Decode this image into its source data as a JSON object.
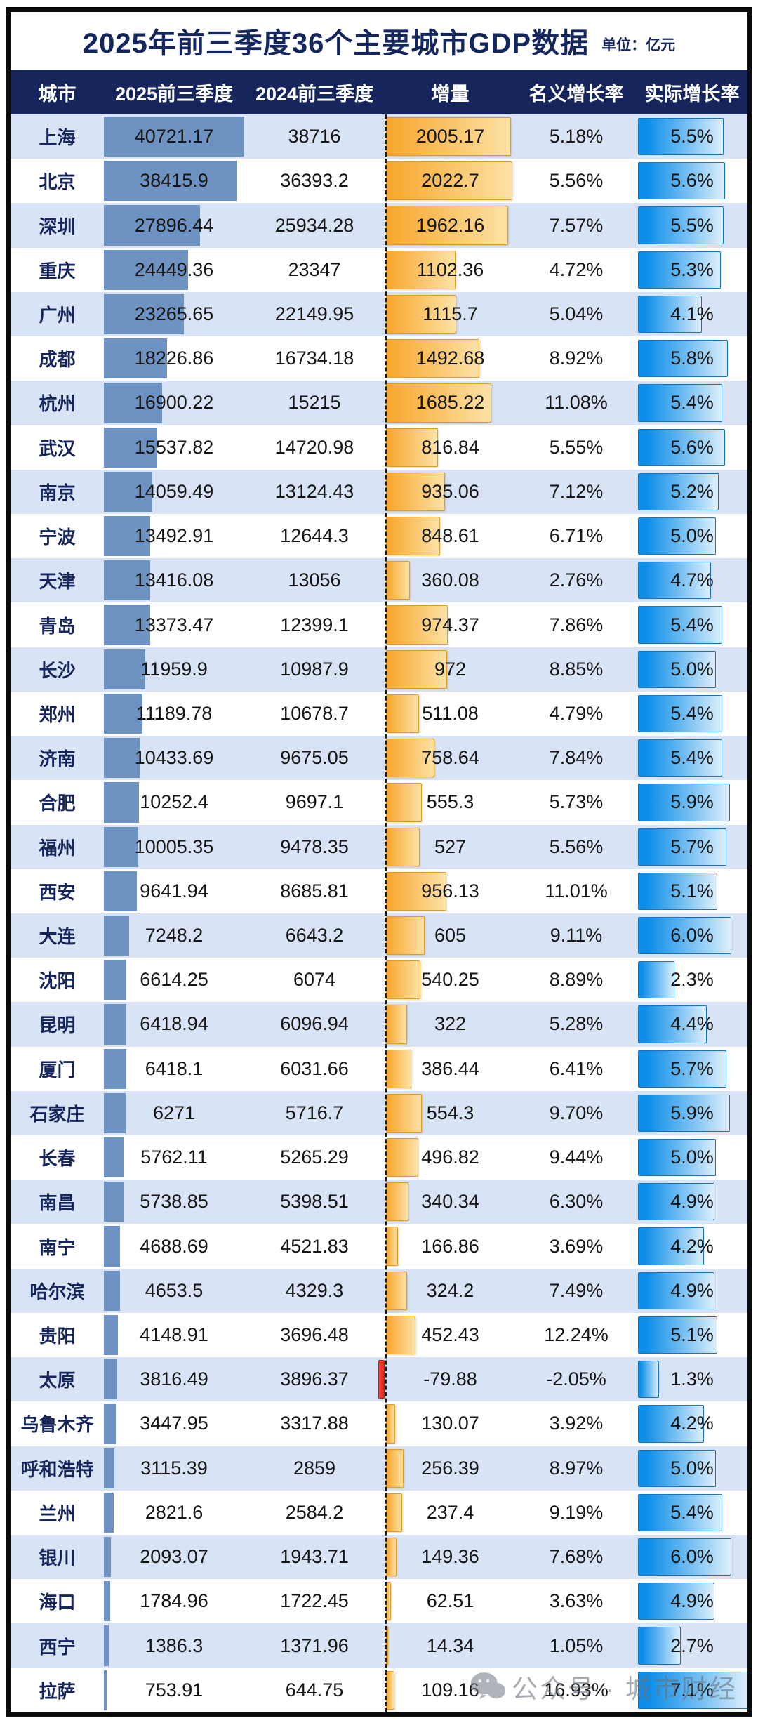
{
  "title": "2025年前三季度36个主要城市GDP数据",
  "unit_label": "单位：亿元",
  "watermark": {
    "icon": "wechat-icon",
    "text": "公众号 · 城市财经"
  },
  "colors": {
    "header_navy": "#16265c",
    "row_alt": "#d9e3f6",
    "bar_gdp2025": "#6e93c3",
    "bar_increment_start": "#f8a62b",
    "bar_increment_end": "#fce2a6",
    "bar_increment_negative": "#e02b20",
    "bar_real_start": "#0d8ee9",
    "bar_real_end": "#ddeffc",
    "zero_line": "#1c1c1c"
  },
  "chart_data": {
    "type": "table",
    "title": "2025年前三季度36个主要城市GDP数据",
    "unit": "亿元",
    "columns": [
      "城市",
      "2025前三季度",
      "2024前三季度",
      "增量",
      "名义增长率",
      "实际增长率"
    ],
    "cities": [
      "上海",
      "北京",
      "深圳",
      "重庆",
      "广州",
      "成都",
      "杭州",
      "武汉",
      "南京",
      "宁波",
      "天津",
      "青岛",
      "长沙",
      "郑州",
      "济南",
      "合肥",
      "福州",
      "西安",
      "大连",
      "沈阳",
      "昆明",
      "厦门",
      "石家庄",
      "长春",
      "南昌",
      "南宁",
      "哈尔滨",
      "贵阳",
      "太原",
      "乌鲁木齐",
      "呼和浩特",
      "兰州",
      "银川",
      "海口",
      "西宁",
      "拉萨"
    ],
    "gdp_2025": [
      40721.17,
      38415.9,
      27896.44,
      24449.36,
      23265.65,
      18226.86,
      16900.22,
      15537.82,
      14059.49,
      13492.91,
      13416.08,
      13373.47,
      11959.9,
      11189.78,
      10433.69,
      10252.4,
      10005.35,
      9641.94,
      7248.2,
      6614.25,
      6418.94,
      6418.1,
      6271,
      5762.11,
      5738.85,
      4688.69,
      4653.5,
      4148.91,
      3816.49,
      3447.95,
      3115.39,
      2821.6,
      2093.07,
      1784.96,
      1386.3,
      753.91
    ],
    "gdp_2024": [
      38716,
      36393.2,
      25934.28,
      23347,
      22149.95,
      16734.18,
      15215,
      14720.98,
      13124.43,
      12644.3,
      13056,
      12399.1,
      10987.9,
      10678.7,
      9675.05,
      9697.1,
      9478.35,
      8685.81,
      6643.2,
      6074,
      6096.94,
      6031.66,
      5716.7,
      5265.29,
      5398.51,
      4521.83,
      4329.3,
      3696.48,
      3896.37,
      3317.88,
      2859,
      2584.2,
      1943.71,
      1722.45,
      1371.96,
      644.75
    ],
    "increment": [
      2005.17,
      2022.7,
      1962.16,
      1102.36,
      1115.7,
      1492.68,
      1685.22,
      816.84,
      935.06,
      848.61,
      360.08,
      974.37,
      972,
      511.08,
      758.64,
      555.3,
      527,
      956.13,
      605,
      540.25,
      322,
      386.44,
      554.3,
      496.82,
      340.34,
      166.86,
      324.2,
      452.43,
      -79.88,
      130.07,
      256.39,
      237.4,
      149.36,
      62.51,
      14.34,
      109.16
    ],
    "nominal_growth": [
      "5.18%",
      "5.56%",
      "7.57%",
      "4.72%",
      "5.04%",
      "8.92%",
      "11.08%",
      "5.55%",
      "7.12%",
      "6.71%",
      "2.76%",
      "7.86%",
      "8.85%",
      "4.79%",
      "7.84%",
      "5.73%",
      "5.56%",
      "11.01%",
      "9.11%",
      "8.89%",
      "5.28%",
      "6.41%",
      "9.70%",
      "9.44%",
      "6.30%",
      "3.69%",
      "7.49%",
      "12.24%",
      "-2.05%",
      "3.92%",
      "8.97%",
      "9.19%",
      "7.68%",
      "3.63%",
      "1.05%",
      "16.93%"
    ],
    "real_growth": [
      "5.5%",
      "5.6%",
      "5.5%",
      "5.3%",
      "4.1%",
      "5.8%",
      "5.4%",
      "5.6%",
      "5.2%",
      "5.0%",
      "4.7%",
      "5.4%",
      "5.0%",
      "5.4%",
      "5.4%",
      "5.9%",
      "5.7%",
      "5.1%",
      "6.0%",
      "2.3%",
      "4.4%",
      "5.7%",
      "5.9%",
      "5.0%",
      "4.9%",
      "4.2%",
      "4.9%",
      "5.1%",
      "1.3%",
      "4.2%",
      "5.0%",
      "5.4%",
      "6.0%",
      "4.9%",
      "2.7%",
      "7.1%"
    ],
    "bar_scales": {
      "gdp_2025_max": 40721.17,
      "increment_max": 2022.7,
      "real_growth_max_pct": 7.1
    },
    "layout": {
      "grid": false,
      "zero_axis": "dashed vertical line left of 增量 bars",
      "row_striping": "white / light periwinkle"
    }
  }
}
